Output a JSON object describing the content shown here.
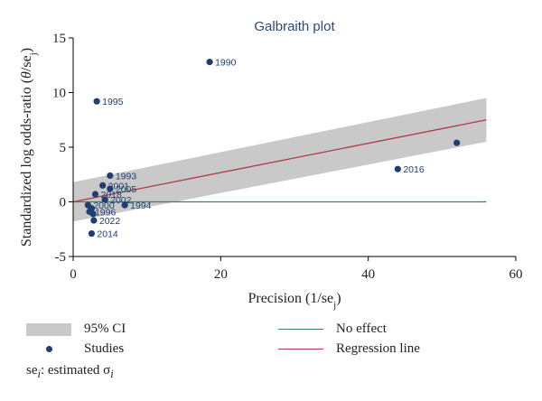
{
  "chart_data": {
    "type": "scatter",
    "title": "Galbraith plot",
    "xlabel": "Precision (1/se_j)",
    "ylabel": "Standardized log odds-ratio (θ/se_j)",
    "xlim": [
      0,
      60
    ],
    "ylim": [
      -5,
      15
    ],
    "xticks": [
      0,
      20,
      40,
      60
    ],
    "yticks": [
      -5,
      0,
      5,
      10,
      15
    ],
    "grid": false,
    "colors": {
      "points": "#1f3f6e",
      "ci_band": "#c9c9c9",
      "regression": "#b03a48",
      "no_effect": "#3e7f6a",
      "title": "#2c4a78"
    },
    "no_effect_y": 0,
    "regression": {
      "x": [
        0,
        56
      ],
      "y": [
        0.0,
        7.5
      ]
    },
    "ci_band": {
      "x": [
        0,
        56
      ],
      "upper": [
        1.8,
        9.5
      ],
      "lower": [
        -1.8,
        5.5
      ]
    },
    "points": [
      {
        "x": 18.5,
        "y": 12.8,
        "label": "1990"
      },
      {
        "x": 3.2,
        "y": 9.2,
        "label": "1995"
      },
      {
        "x": 52,
        "y": 5.4,
        "label": ""
      },
      {
        "x": 44,
        "y": 3.0,
        "label": "2016"
      },
      {
        "x": 5.0,
        "y": 2.4,
        "label": "1993"
      },
      {
        "x": 4.0,
        "y": 1.5,
        "label": "2001"
      },
      {
        "x": 5.0,
        "y": 1.2,
        "label": "2005"
      },
      {
        "x": 3.0,
        "y": 0.7,
        "label": "2018"
      },
      {
        "x": 4.3,
        "y": 0.2,
        "label": "2002"
      },
      {
        "x": 7.0,
        "y": -0.3,
        "label": "1994"
      },
      {
        "x": 2.0,
        "y": -0.3,
        "label": "2000"
      },
      {
        "x": 2.5,
        "y": -0.6,
        "label": ""
      },
      {
        "x": 2.2,
        "y": -0.9,
        "label": "1996"
      },
      {
        "x": 2.7,
        "y": -1.1,
        "label": ""
      },
      {
        "x": 2.8,
        "y": -1.7,
        "label": "2022"
      },
      {
        "x": 2.5,
        "y": -2.9,
        "label": "2014"
      }
    ]
  },
  "legend": {
    "ci_label": "95% CI",
    "studies_label": "Studies",
    "no_effect_label": "No effect",
    "regression_label": "Regression line"
  },
  "note": {
    "text_prefix": "se",
    "text_sub": "i",
    "text_rest": ": estimated σ",
    "text_sub2": "i"
  }
}
